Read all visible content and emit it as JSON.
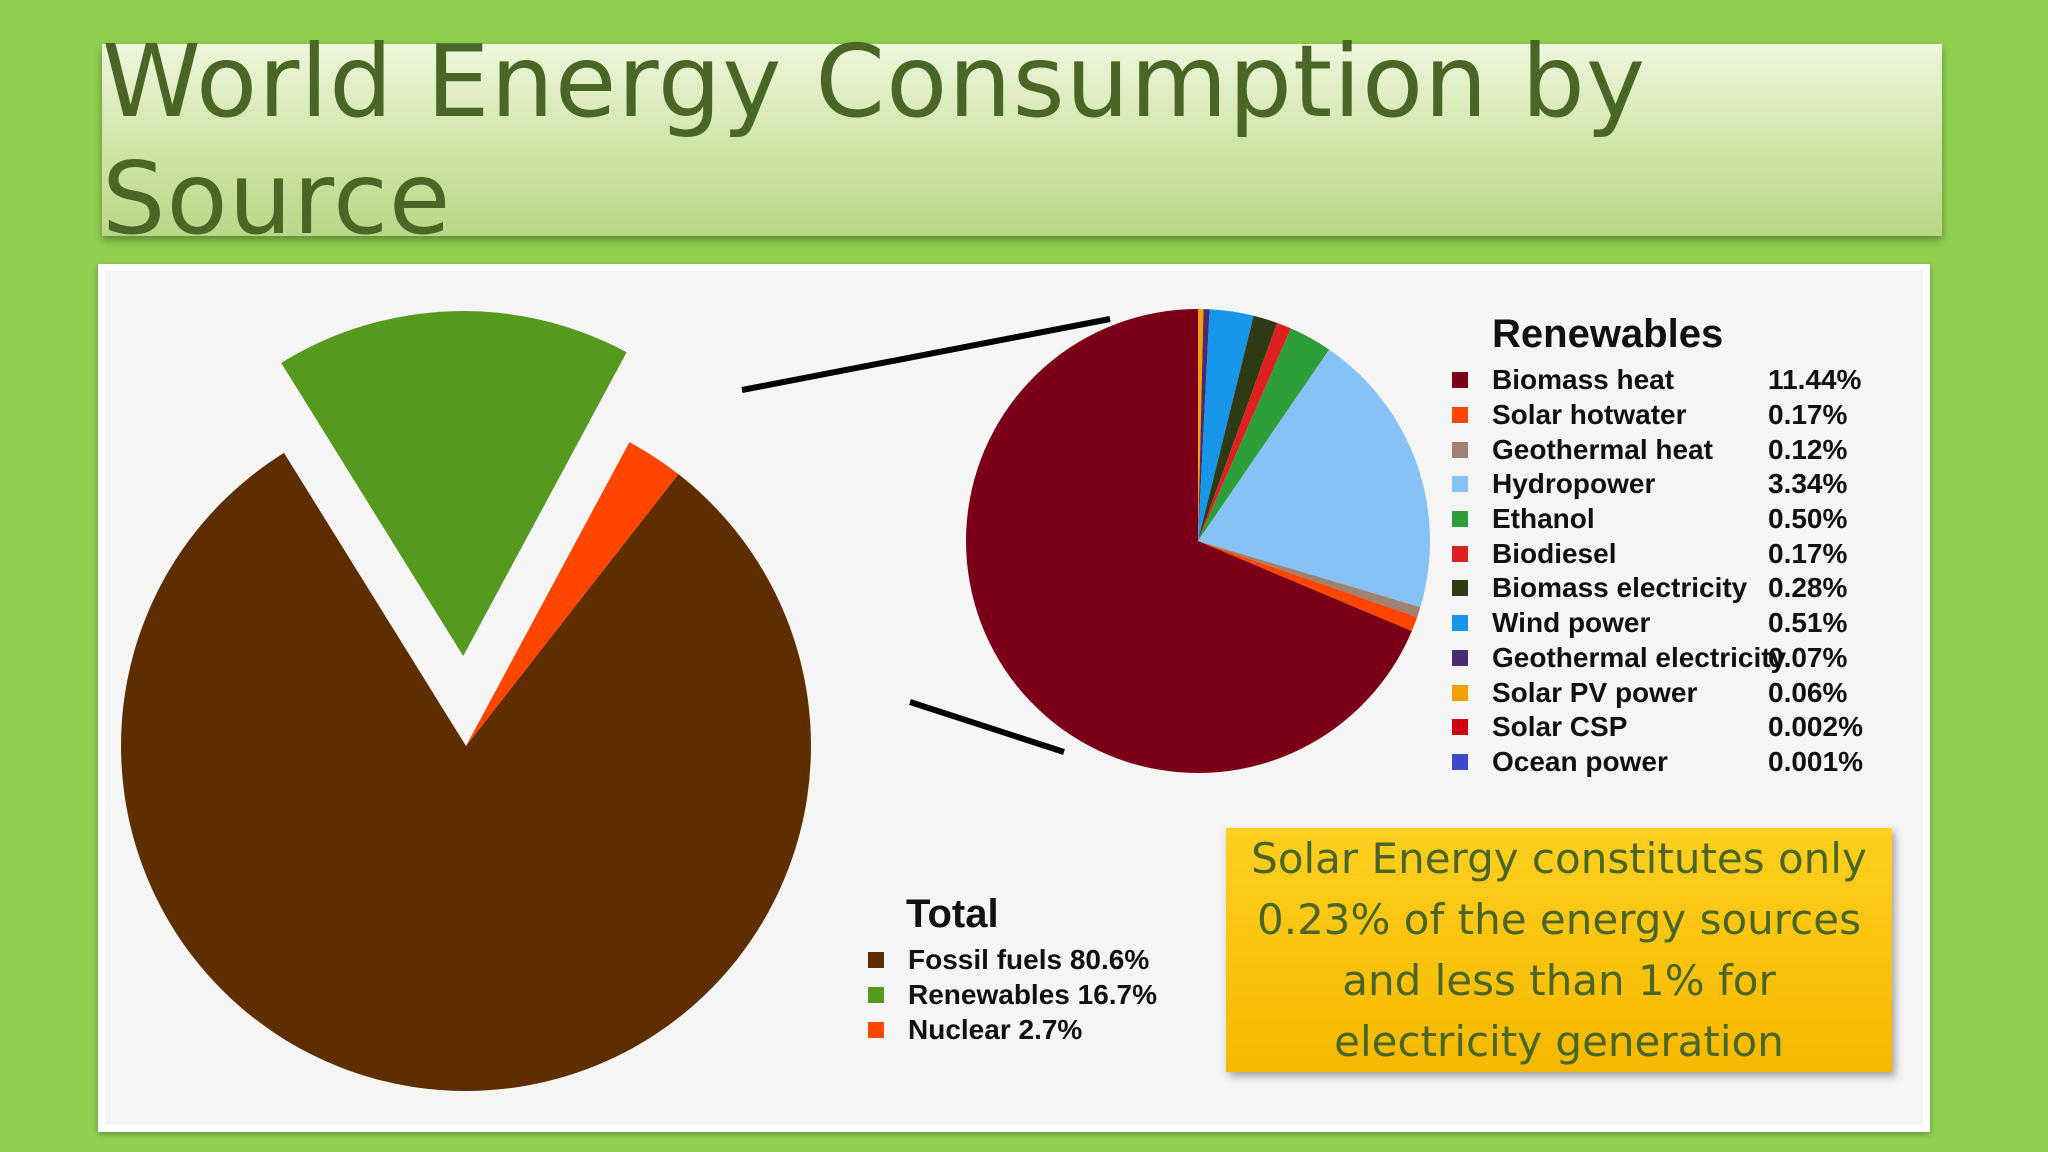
{
  "title": "World Energy Consumption by Source",
  "colors": {
    "background": "#8fd14f",
    "title_text": "#4a6626",
    "callout": "#ffc400"
  },
  "chart_data": [
    {
      "type": "pie",
      "title": "Total",
      "slices": [
        {
          "label": "Fossil fuels 80.6%",
          "name": "Fossil fuels",
          "value": 80.6,
          "color": "#5e2e00"
        },
        {
          "label": "Renewables 16.7%",
          "name": "Renewables",
          "value": 16.7,
          "color": "#559a1f",
          "exploded": true
        },
        {
          "label": "Nuclear 2.7%",
          "name": "Nuclear",
          "value": 2.7,
          "color": "#ff4500"
        }
      ]
    },
    {
      "type": "pie",
      "title": "Renewables",
      "slices": [
        {
          "name": "Biomass heat",
          "value_label": "11.44%",
          "value": 11.44,
          "color": "#7b0017"
        },
        {
          "name": "Solar hotwater",
          "value_label": "0.17%",
          "value": 0.17,
          "color": "#ff4500"
        },
        {
          "name": "Geothermal heat",
          "value_label": "0.12%",
          "value": 0.12,
          "color": "#a08272"
        },
        {
          "name": "Hydropower",
          "value_label": "3.34%",
          "value": 3.34,
          "color": "#87c2f7"
        },
        {
          "name": "Ethanol",
          "value_label": "0.50%",
          "value": 0.5,
          "color": "#2e9e3a"
        },
        {
          "name": "Biodiesel",
          "value_label": "0.17%",
          "value": 0.17,
          "color": "#e02020"
        },
        {
          "name": "Biomass electricity",
          "value_label": "0.28%",
          "value": 0.28,
          "color": "#2d3a14"
        },
        {
          "name": "Wind power",
          "value_label": "0.51%",
          "value": 0.51,
          "color": "#1596e8"
        },
        {
          "name": "Geothermal electricity",
          "value_label": "0.07%",
          "value": 0.07,
          "color": "#4b2a73"
        },
        {
          "name": "Solar PV power",
          "value_label": "0.06%",
          "value": 0.06,
          "color": "#f5a000"
        },
        {
          "name": "Solar CSP",
          "value_label": "0.002%",
          "value": 0.002,
          "color": "#cc0010"
        },
        {
          "name": "Ocean power",
          "value_label": "0.001%",
          "value": 0.001,
          "color": "#3e48cc"
        }
      ]
    }
  ],
  "callout": {
    "lines": [
      "Solar Energy constitutes only",
      "0.23% of the energy sources",
      "and less than 1% for",
      "electricity generation"
    ]
  }
}
